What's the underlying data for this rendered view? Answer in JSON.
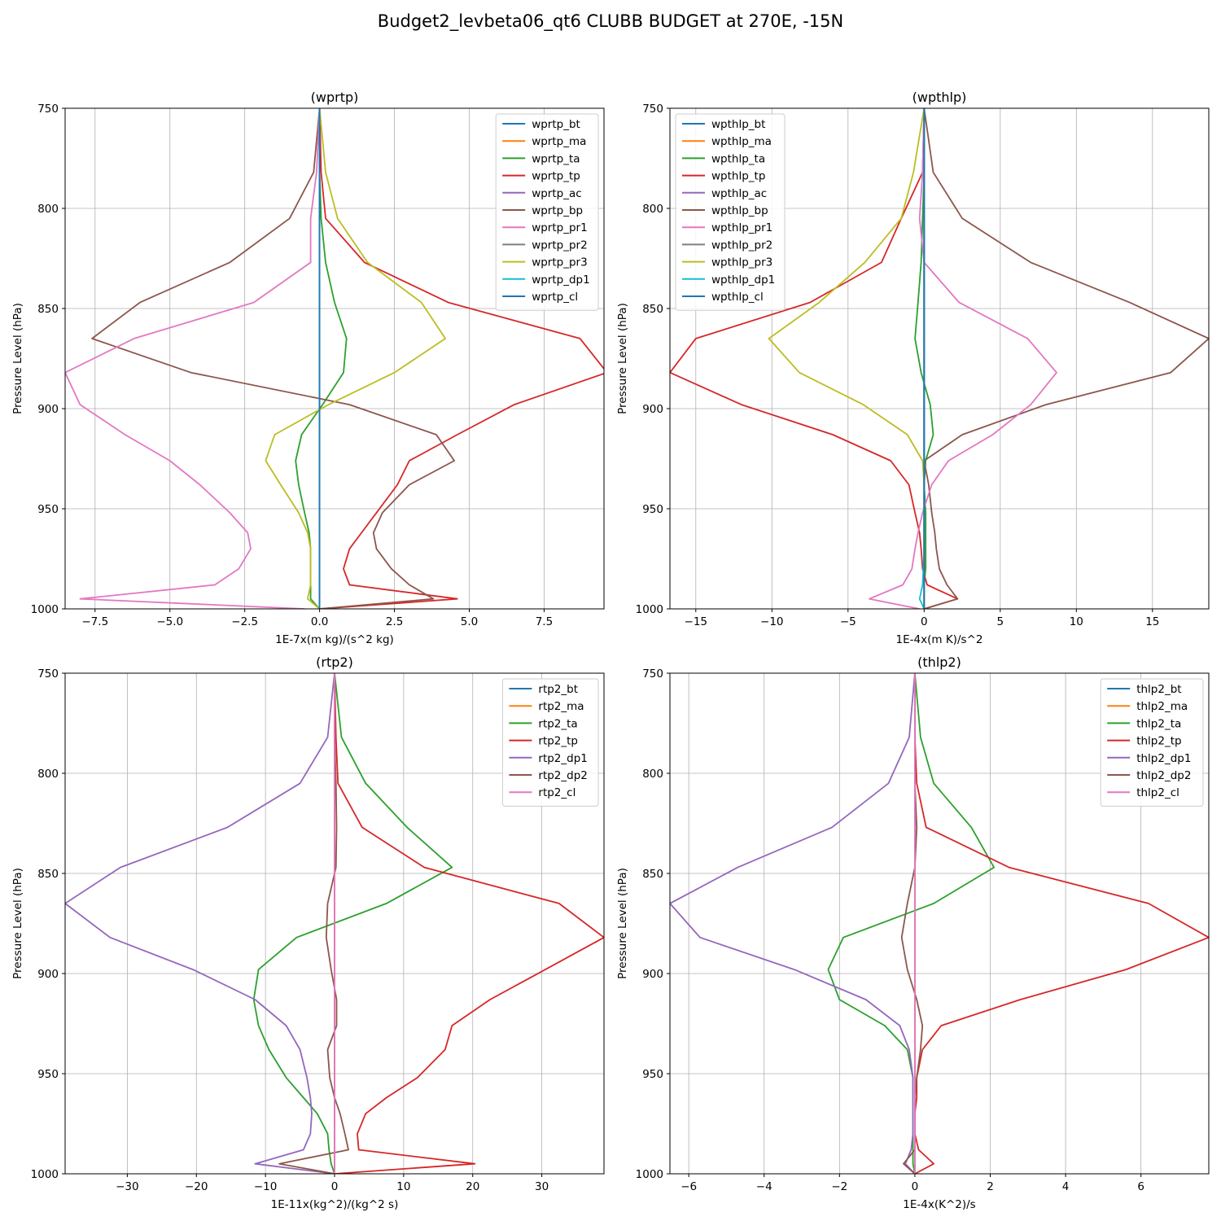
{
  "figure": {
    "suptitle": "Budget2_levbeta06_qt6 CLUBB BUDGET at 270E, -15N"
  },
  "chart_data": [
    {
      "type": "line",
      "title": "(wprtp)",
      "xlabel": "1E-7x(m kg)/(s^2 kg)",
      "ylabel": "Pressure Level (hPa)",
      "xlim": [
        -8.5,
        9.5
      ],
      "ylim": [
        1000,
        750
      ],
      "xticks": [
        -7.5,
        -5.0,
        -2.5,
        0.0,
        2.5,
        5.0,
        7.5
      ],
      "yticks": [
        750,
        800,
        850,
        900,
        950,
        1000
      ],
      "grid": true,
      "legend": "top-right",
      "y": [
        750,
        782,
        805,
        827,
        847,
        865,
        882,
        898,
        913,
        926,
        938,
        952,
        962,
        970,
        980,
        988,
        995,
        1000
      ],
      "series": [
        {
          "name": "wprtp_bt",
          "color": "#1f77b4",
          "values": [
            0,
            0,
            0,
            0,
            0,
            0,
            0,
            0,
            0,
            0,
            0,
            0,
            0,
            0,
            0,
            0,
            0,
            0
          ]
        },
        {
          "name": "wprtp_ma",
          "color": "#ff7f0e",
          "values": [
            0,
            0,
            0,
            0,
            0,
            0,
            0,
            0,
            0,
            0,
            0,
            0,
            0,
            0,
            0,
            0,
            0,
            0
          ]
        },
        {
          "name": "wprtp_ta",
          "color": "#2ca02c",
          "values": [
            0,
            0,
            0.05,
            0.2,
            0.5,
            0.9,
            0.8,
            0.1,
            -0.6,
            -0.8,
            -0.7,
            -0.5,
            -0.35,
            -0.3,
            -0.3,
            -0.3,
            -0.3,
            0
          ]
        },
        {
          "name": "wprtp_tp",
          "color": "#d62728",
          "values": [
            0,
            0.05,
            0.2,
            1.5,
            4.3,
            8.7,
            9.6,
            6.5,
            4.6,
            3.0,
            2.6,
            1.9,
            1.4,
            1.0,
            0.8,
            1.0,
            4.6,
            0
          ]
        },
        {
          "name": "wprtp_ac",
          "color": "#9467bd",
          "values": [
            0,
            0,
            0,
            0,
            0,
            0,
            0,
            0,
            0,
            0,
            0,
            0,
            0,
            0,
            0,
            0,
            0,
            0
          ]
        },
        {
          "name": "wprtp_bp",
          "color": "#8c564b",
          "values": [
            0,
            -0.2,
            -1.0,
            -3.0,
            -6.0,
            -7.6,
            -4.3,
            1.0,
            3.9,
            4.5,
            3.0,
            2.1,
            1.8,
            1.9,
            2.4,
            3.0,
            3.8,
            0
          ]
        },
        {
          "name": "wprtp_pr1",
          "color": "#e377c2",
          "values": [
            0,
            -0.1,
            -0.3,
            -0.3,
            -2.2,
            -6.2,
            -8.5,
            -8.0,
            -6.5,
            -5.0,
            -4.0,
            -3.0,
            -2.4,
            -2.3,
            -2.7,
            -3.5,
            -8.0,
            -0.5
          ]
        },
        {
          "name": "wprtp_pr2",
          "color": "#7f7f7f",
          "values": [
            0,
            0,
            0,
            0,
            0,
            0,
            0,
            0,
            0,
            0,
            0,
            0,
            0,
            0,
            0,
            0,
            0,
            0
          ]
        },
        {
          "name": "wprtp_pr3",
          "color": "#bcbd22",
          "values": [
            0,
            0.2,
            0.6,
            1.6,
            3.4,
            4.2,
            2.5,
            0.3,
            -1.5,
            -1.8,
            -1.3,
            -0.7,
            -0.4,
            -0.3,
            -0.3,
            -0.3,
            -0.4,
            0
          ]
        },
        {
          "name": "wprtp_dp1",
          "color": "#17becf",
          "values": [
            0,
            0,
            0,
            0,
            0,
            0,
            0,
            0,
            0,
            0,
            0,
            0,
            0,
            0,
            0,
            0,
            0,
            0
          ]
        },
        {
          "name": "wprtp_cl",
          "color": "#1f77b4",
          "values": [
            0,
            0,
            0,
            0,
            0,
            0,
            0,
            0,
            0,
            0,
            0,
            0,
            0,
            0,
            0,
            0,
            0,
            0
          ]
        }
      ]
    },
    {
      "type": "line",
      "title": "(wpthlp)",
      "xlabel": "1E-4x(m K)/s^2",
      "ylabel": "Pressure Level (hPa)",
      "xlim": [
        -16.7,
        18.7
      ],
      "ylim": [
        1000,
        750
      ],
      "xticks": [
        -15,
        -10,
        -5,
        0,
        5,
        10,
        15
      ],
      "yticks": [
        750,
        800,
        850,
        900,
        950,
        1000
      ],
      "grid": true,
      "legend": "top-left",
      "y": [
        750,
        782,
        805,
        827,
        847,
        865,
        882,
        898,
        913,
        926,
        938,
        952,
        962,
        970,
        980,
        988,
        995,
        1000
      ],
      "series": [
        {
          "name": "wpthlp_bt",
          "color": "#1f77b4",
          "values": [
            0,
            0,
            0,
            0,
            0,
            0,
            0,
            0,
            0,
            0,
            0,
            0,
            0,
            0,
            0,
            0,
            0,
            0
          ]
        },
        {
          "name": "wpthlp_ma",
          "color": "#ff7f0e",
          "values": [
            0,
            0,
            0,
            0,
            0,
            0,
            0,
            0,
            0,
            0,
            0,
            0,
            0,
            0,
            0,
            0,
            0,
            0
          ]
        },
        {
          "name": "wpthlp_ta",
          "color": "#2ca02c",
          "values": [
            0,
            0,
            -0.1,
            -0.2,
            -0.4,
            -0.6,
            -0.2,
            0.4,
            0.6,
            0.1,
            0,
            0.1,
            0.1,
            0.1,
            0.1,
            0,
            0,
            0
          ]
        },
        {
          "name": "wpthlp_tp",
          "color": "#d62728",
          "values": [
            0,
            -0.1,
            -1.5,
            -2.8,
            -7.5,
            -15,
            -16.7,
            -12,
            -6.0,
            -2.2,
            -1.0,
            -0.6,
            -0.3,
            -0.2,
            -0.1,
            0.2,
            2.2,
            0
          ]
        },
        {
          "name": "wpthlp_ac",
          "color": "#9467bd",
          "values": [
            0,
            0,
            0,
            0,
            0,
            0,
            0,
            0,
            0,
            0,
            0,
            0,
            0,
            0,
            0,
            0,
            0,
            0
          ]
        },
        {
          "name": "wpthlp_bp",
          "color": "#8c564b",
          "values": [
            0,
            0.6,
            2.5,
            7.0,
            13.5,
            18.7,
            16.2,
            8.0,
            2.5,
            0,
            0.3,
            0.5,
            0.7,
            0.8,
            1.0,
            1.5,
            2.2,
            0
          ]
        },
        {
          "name": "wpthlp_pr1",
          "color": "#e377c2",
          "values": [
            0,
            -0.1,
            -0.3,
            0,
            2.3,
            6.8,
            8.7,
            7.0,
            4.5,
            1.6,
            0.5,
            -0.1,
            -0.4,
            -0.6,
            -0.8,
            -1.4,
            -3.6,
            -0.3
          ]
        },
        {
          "name": "wpthlp_pr2",
          "color": "#7f7f7f",
          "values": [
            0,
            0,
            0,
            0,
            0,
            0,
            0,
            0,
            0,
            0,
            0,
            0,
            0,
            0,
            0,
            0,
            0,
            0
          ]
        },
        {
          "name": "wpthlp_pr3",
          "color": "#bcbd22",
          "values": [
            0,
            -0.7,
            -1.5,
            -3.9,
            -6.9,
            -10.2,
            -8.2,
            -4.0,
            -1.1,
            -0.1,
            0,
            0,
            0,
            0,
            0,
            0,
            0,
            0
          ]
        },
        {
          "name": "wpthlp_dp1",
          "color": "#17becf",
          "values": [
            0,
            0,
            0,
            0,
            0,
            0,
            0,
            0,
            0,
            0,
            0,
            0,
            0,
            0,
            -0.05,
            -0.1,
            -0.3,
            0
          ]
        },
        {
          "name": "wpthlp_cl",
          "color": "#1f77b4",
          "values": [
            0,
            0,
            0,
            0,
            0,
            0,
            0,
            0,
            0,
            0,
            0,
            0,
            0,
            0,
            0,
            0,
            0,
            0
          ]
        }
      ]
    },
    {
      "type": "line",
      "title": "(rtp2)",
      "xlabel": "1E-11x(kg^2)/(kg^2 s)",
      "ylabel": "Pressure Level (hPa)",
      "xlim": [
        -39,
        39
      ],
      "ylim": [
        1000,
        750
      ],
      "xticks": [
        -30,
        -20,
        -10,
        0,
        10,
        20,
        30
      ],
      "yticks": [
        750,
        800,
        850,
        900,
        950,
        1000
      ],
      "grid": true,
      "legend": "top-right",
      "y": [
        750,
        782,
        805,
        827,
        847,
        865,
        882,
        898,
        913,
        926,
        938,
        952,
        962,
        970,
        980,
        988,
        995,
        1000
      ],
      "series": [
        {
          "name": "rtp2_bt",
          "color": "#1f77b4",
          "values": [
            0,
            0,
            0,
            0,
            0,
            0,
            0,
            0,
            0,
            0,
            0,
            0,
            0,
            0,
            0,
            0,
            0,
            0
          ]
        },
        {
          "name": "rtp2_ma",
          "color": "#ff7f0e",
          "values": [
            0,
            0,
            0,
            0,
            0,
            0,
            0,
            0,
            0,
            0,
            0,
            0,
            0,
            0,
            0,
            0,
            0,
            0
          ]
        },
        {
          "name": "rtp2_ta",
          "color": "#2ca02c",
          "values": [
            0,
            1.0,
            4.5,
            10.5,
            17.0,
            7.5,
            -5.5,
            -11.0,
            -11.7,
            -11.0,
            -9.5,
            -7.0,
            -4.5,
            -2.5,
            -1.0,
            -0.8,
            -0.5,
            0
          ]
        },
        {
          "name": "rtp2_tp",
          "color": "#d62728",
          "values": [
            0,
            0.2,
            0.5,
            4.0,
            13.0,
            32.5,
            39.0,
            30.5,
            22.5,
            17.0,
            16.0,
            12.0,
            7.5,
            4.5,
            3.3,
            3.5,
            20.3,
            0
          ]
        },
        {
          "name": "rtp2_dp1",
          "color": "#9467bd",
          "values": [
            0,
            -1.0,
            -5.0,
            -15.5,
            -31.0,
            -39.0,
            -32.5,
            -20.5,
            -11.5,
            -7.0,
            -5.0,
            -4.0,
            -3.5,
            -3.3,
            -3.5,
            -4.5,
            -11.5,
            0
          ]
        },
        {
          "name": "rtp2_dp2",
          "color": "#8c564b",
          "values": [
            0,
            0,
            0.2,
            0.3,
            0.2,
            -1.0,
            -1.2,
            -0.5,
            0.3,
            0.3,
            -1.0,
            -0.7,
            0,
            0.8,
            1.5,
            2.0,
            -8.0,
            0
          ]
        },
        {
          "name": "rtp2_cl",
          "color": "#e377c2",
          "values": [
            0,
            0,
            0,
            0,
            0,
            0,
            0,
            0,
            0,
            0,
            0,
            0,
            0,
            0,
            0,
            0,
            0,
            0
          ]
        }
      ]
    },
    {
      "type": "line",
      "title": "(thlp2)",
      "xlabel": "1E-4x(K^2)/s",
      "ylabel": "Pressure Level (hPa)",
      "xlim": [
        -6.5,
        7.8
      ],
      "ylim": [
        1000,
        750
      ],
      "xticks": [
        -6,
        -4,
        -2,
        0,
        2,
        4,
        6
      ],
      "yticks": [
        750,
        800,
        850,
        900,
        950,
        1000
      ],
      "grid": true,
      "legend": "top-right",
      "y": [
        750,
        782,
        805,
        827,
        847,
        865,
        882,
        898,
        913,
        926,
        938,
        952,
        962,
        970,
        980,
        988,
        995,
        1000
      ],
      "series": [
        {
          "name": "thlp2_bt",
          "color": "#1f77b4",
          "values": [
            0,
            0,
            0,
            0,
            0,
            0,
            0,
            0,
            0,
            0,
            0,
            0,
            0,
            0,
            0,
            0,
            0,
            0
          ]
        },
        {
          "name": "thlp2_ma",
          "color": "#ff7f0e",
          "values": [
            0,
            0,
            0,
            0,
            0,
            0,
            0,
            0,
            0,
            0,
            0,
            0,
            0,
            0,
            0,
            0,
            0,
            0
          ]
        },
        {
          "name": "thlp2_ta",
          "color": "#2ca02c",
          "values": [
            0,
            0.15,
            0.5,
            1.5,
            2.1,
            0.5,
            -1.9,
            -2.3,
            -2.0,
            -0.8,
            -0.2,
            -0.05,
            -0.05,
            -0.05,
            -0.05,
            -0.05,
            -0.05,
            0
          ]
        },
        {
          "name": "thlp2_tp",
          "color": "#d62728",
          "values": [
            0,
            0,
            0.05,
            0.3,
            2.5,
            6.2,
            7.8,
            5.6,
            2.8,
            0.7,
            0.2,
            0.05,
            0.05,
            0,
            0,
            0.1,
            0.5,
            0
          ]
        },
        {
          "name": "thlp2_dp1",
          "color": "#9467bd",
          "values": [
            0,
            -0.15,
            -0.7,
            -2.2,
            -4.7,
            -6.5,
            -5.7,
            -3.2,
            -1.3,
            -0.4,
            -0.15,
            -0.05,
            -0.05,
            -0.05,
            -0.05,
            -0.1,
            -0.25,
            0
          ]
        },
        {
          "name": "thlp2_dp2",
          "color": "#8c564b",
          "values": [
            0,
            0,
            0,
            0.05,
            0,
            -0.2,
            -0.35,
            -0.2,
            0.05,
            0.2,
            0.15,
            0.05,
            0,
            0,
            0,
            0,
            -0.3,
            0
          ]
        },
        {
          "name": "thlp2_cl",
          "color": "#e377c2",
          "values": [
            0,
            0,
            0,
            0,
            0,
            0,
            0,
            0,
            0,
            0,
            0,
            0,
            0,
            0,
            0,
            0,
            0,
            0
          ]
        }
      ]
    }
  ]
}
